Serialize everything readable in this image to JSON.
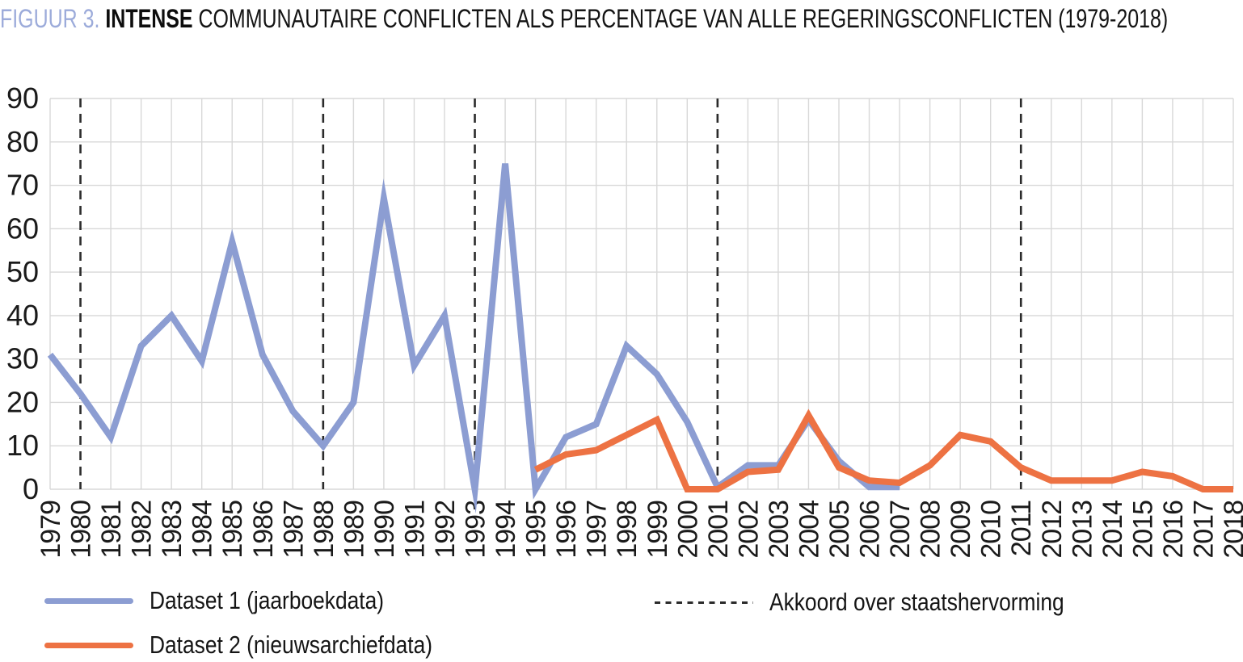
{
  "title": {
    "prefix": "FIGUUR 3. ",
    "emphasis": "INTENSE",
    "rest": " COMMUNAUTAIRE CONFLICTEN ALS PERCENTAGE VAN ALLE REGERINGSCONFLICTEN (1979-2018)"
  },
  "colors": {
    "dataset1": "#8c9dd2",
    "dataset2": "#ed7243",
    "title_accent": "#9cabda",
    "grid": "#d8d8d8",
    "event_line": "#2b2b2b",
    "text": "#1a1a1a"
  },
  "legend": {
    "items": [
      {
        "label": "Dataset 1 (jaarboekdata)",
        "color_key": "dataset1"
      },
      {
        "label": "Dataset 2 (nieuwsarchiefdata)",
        "color_key": "dataset2"
      }
    ],
    "event_label": "Akkoord over staatshervorming"
  },
  "chart_data": {
    "type": "line",
    "title": "FIGUUR 3. INTENSE COMMUNAUTAIRE CONFLICTEN ALS PERCENTAGE VAN ALLE REGERINGSCONFLICTEN (1979-2018)",
    "xlabel": "",
    "ylabel": "",
    "x": [
      1979,
      1980,
      1981,
      1982,
      1983,
      1984,
      1985,
      1986,
      1987,
      1988,
      1989,
      1990,
      1991,
      1992,
      1993,
      1994,
      1995,
      1996,
      1997,
      1998,
      1999,
      2000,
      2001,
      2002,
      2003,
      2004,
      2005,
      2006,
      2007,
      2008,
      2009,
      2010,
      2011,
      2012,
      2013,
      2014,
      2015,
      2016,
      2017,
      2018
    ],
    "series": [
      {
        "name": "Dataset 1 (jaarboekdata)",
        "color": "#8c9dd2",
        "values": [
          31,
          22,
          12,
          33,
          40,
          29.5,
          57,
          31,
          18,
          10,
          20,
          67,
          28.5,
          40,
          0,
          75,
          0,
          12,
          15,
          33,
          26.5,
          15.5,
          0.5,
          5.5,
          5.5,
          16,
          6.5,
          0.5,
          0.5,
          null,
          null,
          null,
          null,
          null,
          null,
          null,
          null,
          null,
          null,
          null
        ]
      },
      {
        "name": "Dataset 2 (nieuwsarchiefdata)",
        "color": "#ed7243",
        "values": [
          null,
          null,
          null,
          null,
          null,
          null,
          null,
          null,
          null,
          null,
          null,
          null,
          null,
          null,
          null,
          null,
          4.5,
          8,
          9,
          12.5,
          16,
          0,
          0,
          4,
          4.5,
          17,
          5,
          2,
          1.5,
          5.5,
          12.5,
          11,
          5,
          2,
          2,
          2,
          4,
          3,
          0,
          0
        ]
      }
    ],
    "event_years": [
      1980,
      1988,
      1993,
      2001,
      2011
    ],
    "event_label": "Akkoord over staatshervorming",
    "ylim": [
      0,
      90
    ],
    "ytick_step": 10,
    "grid": true,
    "legend_position": "bottom"
  }
}
